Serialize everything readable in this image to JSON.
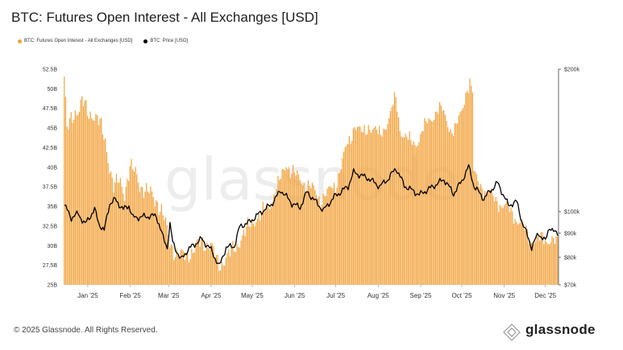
{
  "chart_data": {
    "type": "bar",
    "title": "BTC: Futures Open Interest - All Exchanges [USD]",
    "legend": [
      "BTC: Futures Open Interest - All Exchanges [USD]",
      "BTC: Price [USD]"
    ],
    "legend_placement": "top-left",
    "colors": {
      "bars": "#f2a23c",
      "price": "#000000"
    },
    "x_labels": [
      "Jan '25",
      "Feb '25",
      "Mar '25",
      "Apr '25",
      "May '25",
      "Jun '25",
      "Jul '25",
      "Aug '25",
      "Sep '25",
      "Oct '25",
      "Nov '25",
      "Dec '25"
    ],
    "y_left": {
      "ticks": [
        "25B",
        "27.5B",
        "30B",
        "32.5B",
        "35B",
        "37.5B",
        "40B",
        "42.5B",
        "45B",
        "47.5B",
        "50B",
        "52.5B"
      ],
      "range": [
        25,
        52.5
      ],
      "unit": "B"
    },
    "y_right": {
      "ticks": [
        "$70k",
        "$80k",
        "$90k",
        "$100k",
        "$200k"
      ],
      "scale": "log",
      "range": [
        70000,
        200000
      ]
    },
    "dates": [
      "2024-12-15",
      "2025-12-10"
    ],
    "open_interest_keypoints": [
      [
        "2024-12-15",
        52.0
      ],
      [
        "2024-12-17",
        44.5
      ],
      [
        "2024-12-20",
        46.0
      ],
      [
        "2024-12-25",
        47.5
      ],
      [
        "2024-12-28",
        48.5
      ],
      [
        "2025-01-02",
        46.5
      ],
      [
        "2025-01-06",
        47.0
      ],
      [
        "2025-01-10",
        45.5
      ],
      [
        "2025-01-14",
        43.0
      ],
      [
        "2025-01-17",
        40.5
      ],
      [
        "2025-01-20",
        37.5
      ],
      [
        "2025-01-24",
        38.0
      ],
      [
        "2025-01-28",
        37.0
      ],
      [
        "2025-02-01",
        40.0
      ],
      [
        "2025-02-05",
        39.0
      ],
      [
        "2025-02-10",
        37.5
      ],
      [
        "2025-02-15",
        36.5
      ],
      [
        "2025-02-20",
        36.0
      ],
      [
        "2025-02-24",
        34.5
      ],
      [
        "2025-02-27",
        32.5
      ],
      [
        "2025-03-01",
        31.0
      ],
      [
        "2025-03-05",
        29.5
      ],
      [
        "2025-03-10",
        28.5
      ],
      [
        "2025-03-15",
        29.0
      ],
      [
        "2025-03-20",
        29.5
      ],
      [
        "2025-03-25",
        30.5
      ],
      [
        "2025-04-01",
        30.0
      ],
      [
        "2025-04-07",
        27.5
      ],
      [
        "2025-04-10",
        28.0
      ],
      [
        "2025-04-15",
        29.0
      ],
      [
        "2025-04-20",
        30.0
      ],
      [
        "2025-04-25",
        31.5
      ],
      [
        "2025-05-01",
        33.0
      ],
      [
        "2025-05-08",
        34.0
      ],
      [
        "2025-05-15",
        35.5
      ],
      [
        "2025-05-22",
        38.5
      ],
      [
        "2025-05-26",
        40.5
      ],
      [
        "2025-06-01",
        39.0
      ],
      [
        "2025-06-08",
        38.0
      ],
      [
        "2025-06-15",
        37.0
      ],
      [
        "2025-06-20",
        36.0
      ],
      [
        "2025-06-25",
        36.5
      ],
      [
        "2025-07-01",
        38.0
      ],
      [
        "2025-07-05",
        40.0
      ],
      [
        "2025-07-10",
        43.0
      ],
      [
        "2025-07-15",
        45.5
      ],
      [
        "2025-07-20",
        44.0
      ],
      [
        "2025-07-25",
        45.5
      ],
      [
        "2025-08-01",
        44.0
      ],
      [
        "2025-08-05",
        45.0
      ],
      [
        "2025-08-10",
        46.5
      ],
      [
        "2025-08-14",
        49.0
      ],
      [
        "2025-08-17",
        45.0
      ],
      [
        "2025-08-22",
        43.5
      ],
      [
        "2025-08-28",
        43.0
      ],
      [
        "2025-09-01",
        44.0
      ],
      [
        "2025-09-05",
        45.5
      ],
      [
        "2025-09-08",
        46.0
      ],
      [
        "2025-09-12",
        47.0
      ],
      [
        "2025-09-16",
        47.5
      ],
      [
        "2025-09-20",
        46.0
      ],
      [
        "2025-09-24",
        44.5
      ],
      [
        "2025-09-28",
        45.5
      ],
      [
        "2025-10-01",
        47.0
      ],
      [
        "2025-10-04",
        49.5
      ],
      [
        "2025-10-07",
        51.0
      ],
      [
        "2025-10-09",
        49.5
      ],
      [
        "2025-10-10",
        39.0
      ],
      [
        "2025-10-12",
        38.5
      ],
      [
        "2025-10-18",
        37.0
      ],
      [
        "2025-10-25",
        36.0
      ],
      [
        "2025-11-01",
        35.0
      ],
      [
        "2025-11-08",
        34.0
      ],
      [
        "2025-11-14",
        32.5
      ],
      [
        "2025-11-20",
        31.0
      ],
      [
        "2025-11-25",
        30.5
      ],
      [
        "2025-12-01",
        31.0
      ],
      [
        "2025-12-05",
        30.8
      ],
      [
        "2025-12-10",
        30.0
      ]
    ],
    "price_keypoints": [
      [
        "2024-12-15",
        103000
      ],
      [
        "2024-12-20",
        97000
      ],
      [
        "2024-12-25",
        99000
      ],
      [
        "2024-12-30",
        94000
      ],
      [
        "2025-01-06",
        101000
      ],
      [
        "2025-01-09",
        94500
      ],
      [
        "2025-01-13",
        91000
      ],
      [
        "2025-01-17",
        104000
      ],
      [
        "2025-01-21",
        106000
      ],
      [
        "2025-01-27",
        101000
      ],
      [
        "2025-01-31",
        103000
      ],
      [
        "2025-02-03",
        97000
      ],
      [
        "2025-02-10",
        97500
      ],
      [
        "2025-02-20",
        98000
      ],
      [
        "2025-02-25",
        88000
      ],
      [
        "2025-02-28",
        84000
      ],
      [
        "2025-03-02",
        94000
      ],
      [
        "2025-03-04",
        86000
      ],
      [
        "2025-03-10",
        79000
      ],
      [
        "2025-03-15",
        83000
      ],
      [
        "2025-03-25",
        87500
      ],
      [
        "2025-04-01",
        83000
      ],
      [
        "2025-04-07",
        76500
      ],
      [
        "2025-04-12",
        84000
      ],
      [
        "2025-04-18",
        84500
      ],
      [
        "2025-04-22",
        93000
      ],
      [
        "2025-04-29",
        95000
      ],
      [
        "2025-05-08",
        100000
      ],
      [
        "2025-05-15",
        103500
      ],
      [
        "2025-05-22",
        111000
      ],
      [
        "2025-05-30",
        104000
      ],
      [
        "2025-06-05",
        102000
      ],
      [
        "2025-06-10",
        110000
      ],
      [
        "2025-06-22",
        100500
      ],
      [
        "2025-06-30",
        107500
      ],
      [
        "2025-07-10",
        113000
      ],
      [
        "2025-07-14",
        121000
      ],
      [
        "2025-07-25",
        117500
      ],
      [
        "2025-08-02",
        113000
      ],
      [
        "2025-08-08",
        117000
      ],
      [
        "2025-08-14",
        123500
      ],
      [
        "2025-08-20",
        113500
      ],
      [
        "2025-08-31",
        108500
      ],
      [
        "2025-09-10",
        113000
      ],
      [
        "2025-09-18",
        117000
      ],
      [
        "2025-09-25",
        109000
      ],
      [
        "2025-10-01",
        116000
      ],
      [
        "2025-10-06",
        124500
      ],
      [
        "2025-10-10",
        113000
      ],
      [
        "2025-10-17",
        106500
      ],
      [
        "2025-10-27",
        115000
      ],
      [
        "2025-11-04",
        103000
      ],
      [
        "2025-11-10",
        105000
      ],
      [
        "2025-11-14",
        95000
      ],
      [
        "2025-11-21",
        84000
      ],
      [
        "2025-11-26",
        90000
      ],
      [
        "2025-12-01",
        86500
      ],
      [
        "2025-12-04",
        93000
      ],
      [
        "2025-12-08",
        90000
      ]
    ],
    "watermark": "glassnode"
  },
  "footer": "© 2025 Glassnode. All Rights Reserved.",
  "brand": "glassnode"
}
